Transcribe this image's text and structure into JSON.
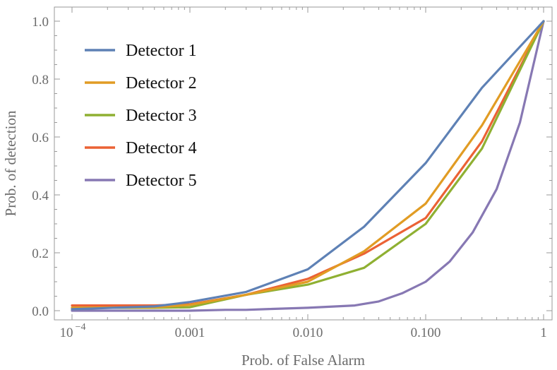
{
  "chart_data": {
    "type": "line",
    "title": "",
    "xlabel": "Prob. of False Alarm",
    "ylabel": "Prob. of detection",
    "xscale": "log",
    "xlim": [
      0.0001,
      1
    ],
    "ylim": [
      -0.02,
      1.02
    ],
    "x_ticks": [
      {
        "value": 0.0001,
        "label": "10",
        "sup": "−4"
      },
      {
        "value": 0.001,
        "label": "0.001",
        "sup": ""
      },
      {
        "value": 0.01,
        "label": "0.010",
        "sup": ""
      },
      {
        "value": 0.1,
        "label": "0.100",
        "sup": ""
      },
      {
        "value": 1,
        "label": "1",
        "sup": ""
      }
    ],
    "y_ticks": [
      {
        "value": 0.0,
        "label": "0.0"
      },
      {
        "value": 0.2,
        "label": "0.2"
      },
      {
        "value": 0.4,
        "label": "0.4"
      },
      {
        "value": 0.6,
        "label": "0.6"
      },
      {
        "value": 0.8,
        "label": "0.8"
      },
      {
        "value": 1.0,
        "label": "1.0"
      }
    ],
    "legend_position": "top-left",
    "series": [
      {
        "name": "Detector 1",
        "color": "#5E81B5",
        "x": [
          0.0001,
          0.0005,
          0.001,
          0.003,
          0.01,
          0.03,
          0.1,
          0.3,
          1
        ],
        "y": [
          0.005,
          0.015,
          0.03,
          0.065,
          0.143,
          0.29,
          0.51,
          0.77,
          1.0
        ]
      },
      {
        "name": "Detector 2",
        "color": "#E19C24",
        "x": [
          0.0001,
          0.0005,
          0.001,
          0.003,
          0.01,
          0.03,
          0.1,
          0.3,
          1
        ],
        "y": [
          0.01,
          0.012,
          0.02,
          0.055,
          0.1,
          0.205,
          0.37,
          0.64,
          1.0
        ]
      },
      {
        "name": "Detector 3",
        "color": "#8FB032",
        "x": [
          0.0001,
          0.0005,
          0.001,
          0.003,
          0.01,
          0.03,
          0.1,
          0.3,
          1
        ],
        "y": [
          0.01,
          0.01,
          0.012,
          0.055,
          0.09,
          0.148,
          0.3,
          0.56,
          1.0
        ]
      },
      {
        "name": "Detector 4",
        "color": "#EB6235",
        "x": [
          0.0001,
          0.0005,
          0.001,
          0.003,
          0.01,
          0.03,
          0.1,
          0.3,
          1
        ],
        "y": [
          0.018,
          0.018,
          0.022,
          0.055,
          0.11,
          0.197,
          0.32,
          0.585,
          1.0
        ]
      },
      {
        "name": "Detector 5",
        "color": "#8778B3",
        "x": [
          0.0001,
          0.001,
          0.002,
          0.003,
          0.005,
          0.01,
          0.025,
          0.04,
          0.063,
          0.1,
          0.16,
          0.25,
          0.4,
          0.63,
          1
        ],
        "y": [
          0.0,
          0.0,
          0.003,
          0.003,
          0.006,
          0.01,
          0.018,
          0.032,
          0.06,
          0.1,
          0.17,
          0.27,
          0.42,
          0.65,
          1.0
        ]
      }
    ]
  }
}
